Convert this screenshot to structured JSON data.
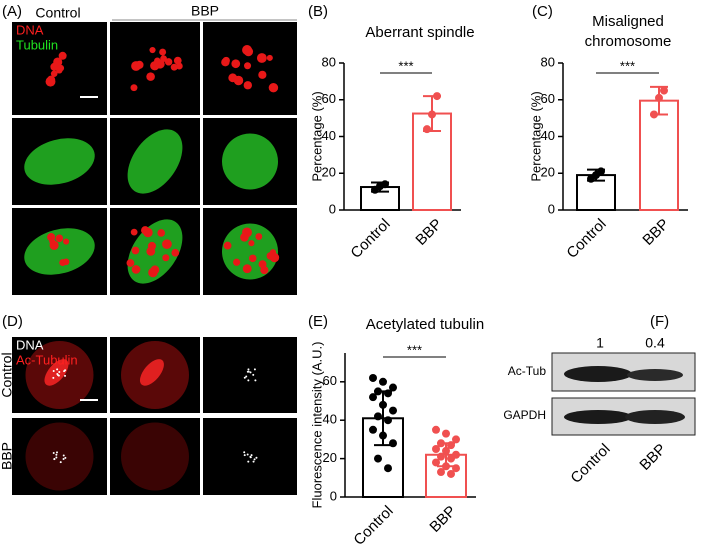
{
  "panel_a": {
    "label": "(A)",
    "columns": [
      "Control",
      "BBP"
    ],
    "channels": [
      "DNA",
      "Tubulin"
    ]
  },
  "panel_d": {
    "label": "(D)",
    "channels": [
      "DNA",
      "Ac-Tubulin"
    ],
    "rows": [
      "Control",
      "BBP"
    ]
  },
  "panel_f": {
    "label": "(F)",
    "ratios": [
      "1",
      "0.4"
    ],
    "bands": [
      "Ac-Tub",
      "GAPDH"
    ],
    "categories": [
      "Control",
      "BBP"
    ]
  },
  "chart_data": [
    {
      "type": "bar",
      "label": "(B)",
      "title": [
        "Aberrant spindle"
      ],
      "ylabel": "Percentage (%)",
      "categories": [
        "Control",
        "BBP"
      ],
      "values": [
        12.5,
        52.5
      ],
      "error": [
        2.5,
        9.5
      ],
      "points": [
        [
          11,
          13,
          14
        ],
        [
          44,
          52,
          62
        ]
      ],
      "colors": [
        "#000000",
        "#f05050"
      ],
      "ylim": [
        0,
        80
      ],
      "yticks": [
        0,
        20,
        40,
        60,
        80
      ],
      "significance": "***"
    },
    {
      "type": "bar",
      "label": "(C)",
      "title": [
        "Misaligned",
        "chromosome"
      ],
      "ylabel": "Percentage (%)",
      "categories": [
        "Control",
        "BBP"
      ],
      "values": [
        19,
        59.5
      ],
      "error": [
        3,
        7.5
      ],
      "points": [
        [
          17,
          19,
          21
        ],
        [
          52,
          61,
          65
        ]
      ],
      "colors": [
        "#000000",
        "#f05050"
      ],
      "ylim": [
        0,
        80
      ],
      "yticks": [
        0,
        20,
        40,
        60,
        80
      ],
      "significance": "***"
    },
    {
      "type": "bar",
      "label": "(E)",
      "title": [
        "Acetylated tubulin"
      ],
      "ylabel": "Fluorescence intensity (A.U.)",
      "categories": [
        "Control",
        "BBP"
      ],
      "values": [
        41,
        22
      ],
      "error": [
        14,
        6
      ],
      "points": [
        [
          62,
          60,
          57,
          55,
          54,
          52,
          48,
          45,
          42,
          40,
          35,
          32,
          28,
          20,
          15
        ],
        [
          35,
          33,
          30,
          28,
          27,
          25,
          24,
          22,
          21,
          20,
          18,
          16,
          15,
          13,
          12
        ]
      ],
      "colors": [
        "#000000",
        "#f05050"
      ],
      "ylim": [
        0,
        75
      ],
      "yticks": [
        0,
        20,
        40,
        60
      ],
      "significance": "***"
    }
  ]
}
